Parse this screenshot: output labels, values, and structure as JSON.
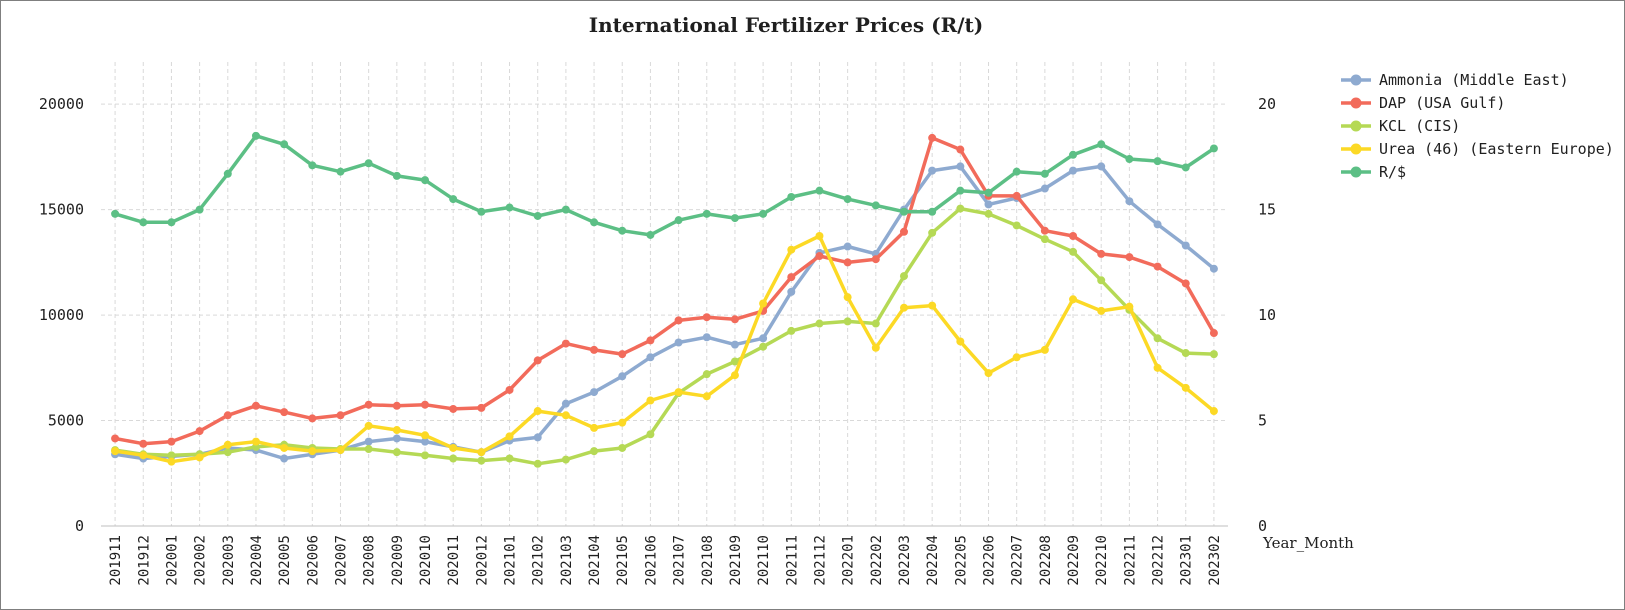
{
  "chart_data": {
    "type": "line",
    "title": "International Fertilizer Prices (R/t)",
    "xlabel": "Year_Month",
    "ylabel": "",
    "ylim": [
      0,
      22000
    ],
    "y_ticks": [
      0,
      5000,
      10000,
      15000,
      20000
    ],
    "y2lim": [
      0,
      22
    ],
    "y2_ticks": [
      0,
      5,
      10,
      15,
      20
    ],
    "grid": true,
    "legend_position": "right",
    "categories": [
      "201911",
      "201912",
      "202001",
      "202002",
      "202003",
      "202004",
      "202005",
      "202006",
      "202007",
      "202008",
      "202009",
      "202010",
      "202011",
      "202012",
      "202101",
      "202102",
      "202103",
      "202104",
      "202105",
      "202106",
      "202107",
      "202108",
      "202109",
      "202110",
      "202111",
      "202112",
      "202201",
      "202202",
      "202203",
      "202204",
      "202205",
      "202206",
      "202207",
      "202208",
      "202209",
      "202210",
      "202211",
      "202212",
      "202301",
      "202302"
    ],
    "series": [
      {
        "name": "Ammonia (Middle East)",
        "axis": "left",
        "color": "#8eaad0",
        "values": [
          3400,
          3200,
          3300,
          3400,
          3700,
          3600,
          3200,
          3400,
          3600,
          4000,
          4150,
          4000,
          3750,
          3500,
          4050,
          4200,
          5800,
          6350,
          7100,
          8000,
          8700,
          8950,
          8600,
          8900,
          11100,
          12950,
          13250,
          12900,
          15000,
          16850,
          17050,
          15250,
          15550,
          16000,
          16850,
          17050,
          15400,
          14300,
          13300,
          12200
        ]
      },
      {
        "name": "DAP (USA Gulf)",
        "axis": "left",
        "color": "#f26b5b",
        "values": [
          4150,
          3900,
          4000,
          4500,
          5250,
          5700,
          5400,
          5100,
          5250,
          5750,
          5700,
          5750,
          5550,
          5600,
          6450,
          7850,
          8650,
          8350,
          8150,
          8800,
          9750,
          9900,
          9800,
          10200,
          11800,
          12800,
          12500,
          12650,
          13950,
          18400,
          17850,
          15650,
          15650,
          14000,
          13750,
          12900,
          12750,
          12300,
          11500,
          9150
        ]
      },
      {
        "name": "KCL (CIS)",
        "axis": "left",
        "color": "#b5d955",
        "values": [
          3600,
          3400,
          3350,
          3400,
          3500,
          3750,
          3850,
          3700,
          3650,
          3650,
          3500,
          3350,
          3200,
          3100,
          3200,
          2950,
          3150,
          3550,
          3700,
          4350,
          6300,
          7200,
          7800,
          8500,
          9250,
          9600,
          9700,
          9600,
          11850,
          13900,
          15050,
          14800,
          14250,
          13600,
          13000,
          11650,
          10250,
          8900,
          8200,
          8150
        ]
      },
      {
        "name": "Urea (46) (Eastern Europe)",
        "axis": "left",
        "color": "#fcd925",
        "values": [
          3550,
          3350,
          3050,
          3250,
          3850,
          4000,
          3700,
          3550,
          3600,
          4750,
          4550,
          4300,
          3700,
          3500,
          4250,
          5450,
          5250,
          4650,
          4900,
          5950,
          6350,
          6150,
          7150,
          10550,
          13100,
          13750,
          10850,
          8450,
          10350,
          10450,
          8750,
          7250,
          8000,
          8350,
          10750,
          10200,
          10400,
          7500,
          6550,
          5450
        ]
      },
      {
        "name": "R/$",
        "axis": "right",
        "color": "#5cbf85",
        "values": [
          14.8,
          14.4,
          14.4,
          15.0,
          16.7,
          18.5,
          18.1,
          17.1,
          16.8,
          17.2,
          16.6,
          16.4,
          15.5,
          14.9,
          15.1,
          14.7,
          15.0,
          14.4,
          14.0,
          13.8,
          14.5,
          14.8,
          14.6,
          14.8,
          15.6,
          15.9,
          15.5,
          15.2,
          14.9,
          14.9,
          15.9,
          15.8,
          16.8,
          16.7,
          17.6,
          18.1,
          17.4,
          17.3,
          17.0,
          17.9
        ]
      }
    ]
  }
}
